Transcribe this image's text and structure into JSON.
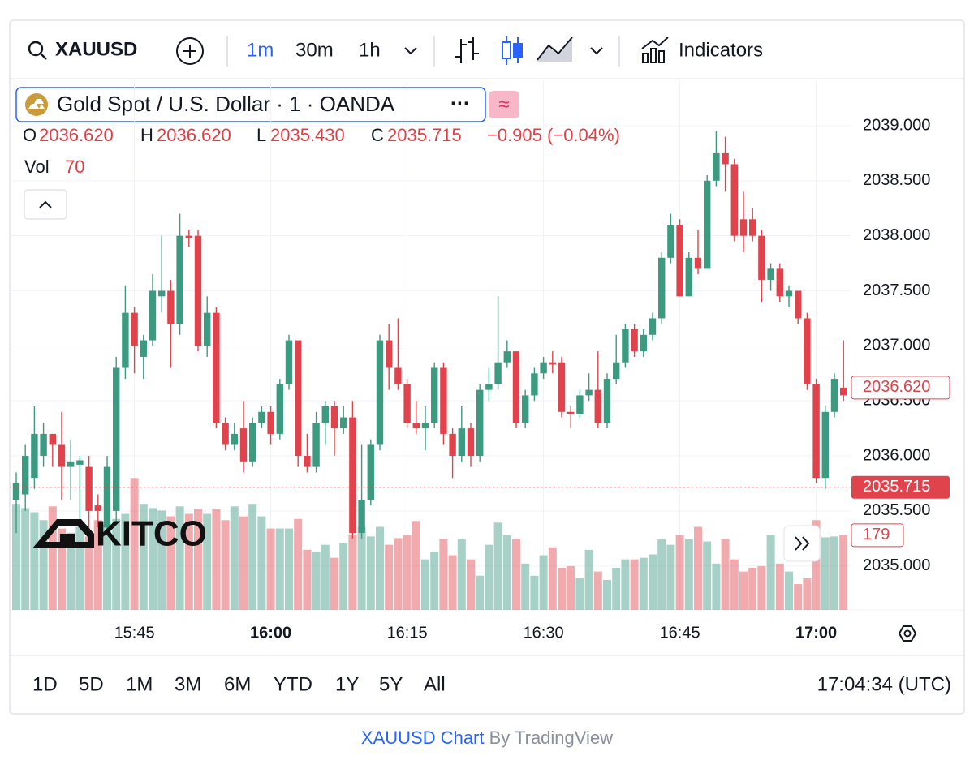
{
  "toolbar": {
    "symbol": "XAUUSD",
    "intervals": [
      "1m",
      "30m",
      "1h"
    ],
    "indicators": "Indicators"
  },
  "legend": {
    "title": "Gold Spot / U.S. Dollar · 1 · OANDA",
    "more": "···",
    "ohlc": [
      {
        "label": "O",
        "value": "2036.620"
      },
      {
        "label": "H",
        "value": "2036.620"
      },
      {
        "label": "L",
        "value": "2035.430"
      },
      {
        "label": "C",
        "value": "2035.715"
      }
    ],
    "change": "−0.905 (−0.04%)",
    "vol_label": "Vol",
    "vol_value": "70"
  },
  "watermark": "KITCO",
  "chart_data": {
    "type": "candlestick",
    "categories": [
      null,
      null,
      null,
      null,
      null,
      null,
      null,
      null,
      null,
      null,
      null,
      null,
      null,
      "15:45",
      null,
      null,
      null,
      null,
      null,
      null,
      null,
      null,
      null,
      null,
      null,
      null,
      null,
      null,
      "16:00",
      null,
      null,
      null,
      null,
      null,
      null,
      null,
      null,
      null,
      null,
      null,
      null,
      null,
      null,
      "16:15",
      null,
      null,
      null,
      null,
      null,
      null,
      null,
      null,
      null,
      null,
      null,
      null,
      null,
      null,
      "16:30",
      null,
      null,
      null,
      null,
      null,
      null,
      null,
      null,
      null,
      null,
      null,
      null,
      null,
      null,
      "16:45",
      null,
      null,
      null,
      null,
      null,
      null,
      null,
      null,
      null,
      null,
      null,
      null,
      null,
      null,
      "17:00",
      null,
      null,
      null
    ],
    "open": [
      2035.6,
      2035.65,
      2035.8,
      2036.0,
      2036.2,
      2036.1,
      2035.9,
      2035.92,
      2035.9,
      2035.55,
      2035.35,
      2035.5,
      2036.8,
      2037.3,
      2036.9,
      2037.05,
      2037.45,
      2037.5,
      2037.2,
      2038.0,
      2038.0,
      2037.0,
      2037.3,
      2036.3,
      2036.1,
      2036.25,
      2035.95,
      2036.3,
      2036.4,
      2036.2,
      2036.65,
      2037.05,
      2036.0,
      2035.9,
      2036.3,
      2036.45,
      2036.25,
      2036.35,
      2035.3,
      2035.6,
      2036.1,
      2037.05,
      2036.8,
      2036.65,
      2036.3,
      2036.25,
      2036.3,
      2036.8,
      2036.2,
      2036.0,
      2036.25,
      2036.0,
      2036.6,
      2036.65,
      2036.85,
      2036.95,
      2036.3,
      2036.55,
      2036.75,
      2036.85,
      2036.85,
      2036.4,
      2036.38,
      2036.55,
      2036.6,
      2036.3,
      2036.7,
      2036.85,
      2037.15,
      2036.95,
      2037.1,
      2037.25,
      2037.8,
      2038.1,
      2037.45,
      2037.8,
      2037.7,
      2038.5,
      2038.75,
      2038.65,
      2038.15,
      2038.15,
      2038.0,
      2037.6,
      2037.7,
      2037.45,
      2037.5,
      2037.25,
      2036.65,
      2035.8,
      2036.4,
      2036.62
    ],
    "high": [
      2035.85,
      2036.1,
      2036.45,
      2036.3,
      2036.2,
      2036.4,
      2036.15,
      2036.0,
      2036.0,
      2035.65,
      2036.0,
      2036.9,
      2037.55,
      2037.35,
      2037.1,
      2037.65,
      2038.0,
      2037.6,
      2038.2,
      2038.05,
      2038.05,
      2037.45,
      2037.35,
      2036.35,
      2036.3,
      2036.5,
      2036.35,
      2036.45,
      2036.45,
      2036.7,
      2037.1,
      2037.05,
      2036.2,
      2036.4,
      2036.5,
      2036.5,
      2036.45,
      2036.5,
      2036.1,
      2036.15,
      2037.1,
      2037.2,
      2037.25,
      2036.7,
      2036.5,
      2036.45,
      2036.85,
      2036.85,
      2036.25,
      2036.45,
      2036.3,
      2036.65,
      2036.8,
      2037.45,
      2037.05,
      2036.95,
      2036.6,
      2036.8,
      2036.9,
      2036.95,
      2036.9,
      2036.45,
      2036.6,
      2036.75,
      2036.95,
      2036.75,
      2037.1,
      2037.2,
      2037.2,
      2037.15,
      2037.3,
      2037.85,
      2038.2,
      2038.15,
      2037.85,
      2038.05,
      2038.55,
      2038.95,
      2038.9,
      2038.7,
      2038.4,
      2038.25,
      2038.05,
      2037.75,
      2037.75,
      2037.55,
      2037.5,
      2037.3,
      2036.7,
      2036.45,
      2036.75,
      2037.05
    ],
    "low": [
      2035.3,
      2035.5,
      2035.7,
      2035.9,
      2035.9,
      2035.6,
      2035.6,
      2035.4,
      2035.2,
      2035.35,
      2035.3,
      2035.4,
      2036.7,
      2036.75,
      2036.7,
      2037.0,
      2037.3,
      2036.8,
      2037.1,
      2037.9,
      2036.95,
      2036.9,
      2036.25,
      2036.05,
      2036.05,
      2035.85,
      2035.9,
      2036.25,
      2036.1,
      2036.15,
      2036.6,
      2035.9,
      2035.85,
      2035.85,
      2036.1,
      2036.0,
      2036.2,
      2035.25,
      2035.25,
      2035.55,
      2036.05,
      2036.6,
      2036.6,
      2036.25,
      2036.2,
      2036.05,
      2036.25,
      2036.1,
      2035.8,
      2035.95,
      2035.9,
      2035.95,
      2036.5,
      2036.6,
      2036.8,
      2036.25,
      2036.25,
      2036.5,
      2036.7,
      2036.75,
      2036.35,
      2036.25,
      2036.35,
      2036.5,
      2036.25,
      2036.25,
      2036.65,
      2036.8,
      2036.9,
      2036.9,
      2037.05,
      2037.2,
      2037.75,
      2037.45,
      2037.45,
      2037.65,
      2037.7,
      2038.45,
      2038.4,
      2037.95,
      2037.85,
      2037.95,
      2037.4,
      2037.5,
      2037.4,
      2037.35,
      2037.2,
      2036.6,
      2035.75,
      2035.7,
      2036.35,
      2036.5
    ],
    "close": [
      2035.75,
      2036.0,
      2036.2,
      2036.2,
      2036.1,
      2035.9,
      2035.95,
      2035.96,
      2035.5,
      2035.5,
      2035.9,
      2036.8,
      2037.3,
      2037.0,
      2037.05,
      2037.5,
      2037.5,
      2037.2,
      2038.0,
      2037.98,
      2037.0,
      2037.3,
      2036.3,
      2036.1,
      2036.2,
      2035.95,
      2036.3,
      2036.4,
      2036.2,
      2036.65,
      2037.05,
      2036.0,
      2035.9,
      2036.3,
      2036.45,
      2036.25,
      2036.35,
      2035.3,
      2035.6,
      2036.1,
      2037.05,
      2036.8,
      2036.65,
      2036.3,
      2036.25,
      2036.3,
      2036.8,
      2036.2,
      2036.0,
      2036.25,
      2036.0,
      2036.6,
      2036.65,
      2036.85,
      2036.95,
      2036.3,
      2036.55,
      2036.75,
      2036.85,
      2036.83,
      2036.4,
      2036.38,
      2036.55,
      2036.6,
      2036.3,
      2036.7,
      2036.85,
      2037.15,
      2036.95,
      2037.1,
      2037.25,
      2037.8,
      2038.1,
      2037.45,
      2037.8,
      2037.7,
      2038.5,
      2038.75,
      2038.65,
      2038.0,
      2038.0,
      2038.0,
      2037.6,
      2037.7,
      2037.45,
      2037.5,
      2037.25,
      2036.65,
      2035.8,
      2036.4,
      2036.7,
      2036.55
    ],
    "volume": [
      254,
      244,
      234,
      215,
      248,
      195,
      185,
      199,
      176,
      215,
      205,
      218,
      230,
      316,
      254,
      244,
      238,
      224,
      248,
      230,
      242,
      230,
      242,
      215,
      248,
      224,
      254,
      224,
      195,
      195,
      195,
      218,
      144,
      140,
      156,
      125,
      160,
      179,
      199,
      176,
      199,
      156,
      172,
      179,
      213,
      121,
      140,
      170,
      131,
      170,
      121,
      82,
      156,
      209,
      179,
      170,
      111,
      82,
      131,
      150,
      101,
      105,
      76,
      144,
      92,
      72,
      101,
      121,
      121,
      125,
      133,
      170,
      156,
      179,
      170,
      199,
      164,
      111,
      170,
      121,
      92,
      101,
      105,
      179,
      111,
      92,
      62,
      76,
      215,
      174,
      176,
      179
    ],
    "up_color": "#3b9a80",
    "down_color": "#e0434b",
    "ylim": [
      2034.6,
      2039.42
    ],
    "yticks": [
      {
        "value": 2035,
        "label": "2035.000"
      },
      {
        "value": 2035.5,
        "label": "2035.500"
      },
      {
        "value": 2036,
        "label": "2036.000"
      },
      {
        "value": 2036.5,
        "label": "2036.500"
      },
      {
        "value": 2037,
        "label": "2037.000"
      },
      {
        "value": 2037.5,
        "label": "2037.500"
      },
      {
        "value": 2038,
        "label": "2038.000"
      },
      {
        "value": 2038.5,
        "label": "2038.500"
      },
      {
        "value": 2039,
        "label": "2039.000"
      }
    ],
    "y2lim": [
      0,
      1270
    ],
    "last_price": {
      "value": 2036.62,
      "label": "2036.620"
    },
    "current_price": {
      "value": 2035.715,
      "label": "2035.715"
    },
    "grid": true
  },
  "footer": {
    "ranges": [
      "1D",
      "5D",
      "1M",
      "3M",
      "6M",
      "YTD",
      "1Y",
      "5Y",
      "All"
    ],
    "time": "17:04:34 (UTC)",
    "credit_link": "XAUUSD Chart",
    "credit_by": " By TradingView"
  }
}
